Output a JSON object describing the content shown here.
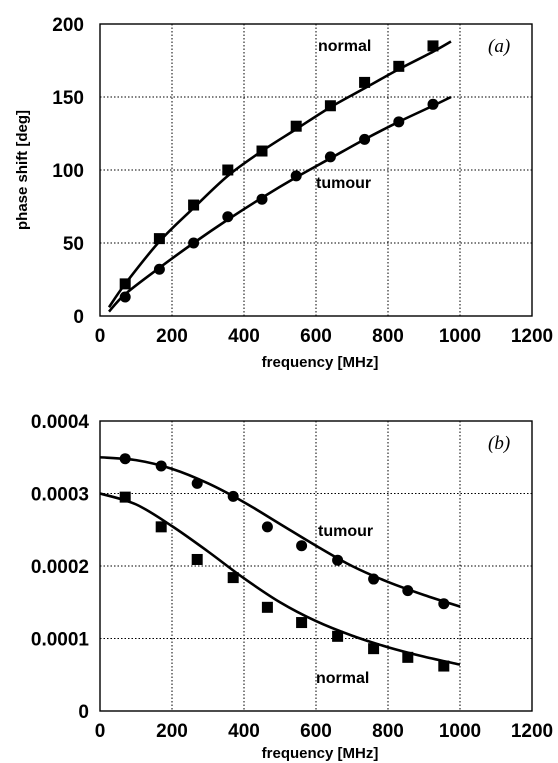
{
  "chart_data": [
    {
      "type": "scatter",
      "panel_label": "(a)",
      "xlabel": "frequency  [MHz]",
      "ylabel": "phase shift [deg]",
      "xlim": [
        0,
        1200
      ],
      "ylim": [
        0,
        200
      ],
      "x_ticks": [
        "0",
        "200",
        "400",
        "600",
        "800",
        "1000",
        "1200"
      ],
      "y_ticks": [
        "0",
        "50",
        "100",
        "150",
        "200"
      ],
      "grid": true,
      "series": [
        {
          "name": "normal",
          "marker": "square",
          "x": [
            70,
            165,
            260,
            355,
            450,
            545,
            640,
            735,
            830,
            925
          ],
          "y": [
            22,
            53,
            76,
            100,
            113,
            130,
            144,
            160,
            171,
            185
          ],
          "fit": [
            [
              25,
              6
            ],
            [
              70,
              22
            ],
            [
              165,
              51
            ],
            [
              260,
              74
            ],
            [
              355,
              96
            ],
            [
              450,
              113
            ],
            [
              545,
              128
            ],
            [
              640,
              143
            ],
            [
              735,
              156
            ],
            [
              830,
              169
            ],
            [
              925,
              181
            ],
            [
              975,
              188
            ]
          ]
        },
        {
          "name": "tumour",
          "marker": "circle",
          "x": [
            70,
            165,
            260,
            355,
            450,
            545,
            640,
            735,
            830,
            925
          ],
          "y": [
            13,
            32,
            50,
            68,
            80,
            96,
            109,
            121,
            133,
            145
          ],
          "fit": [
            [
              25,
              3
            ],
            [
              70,
              15
            ],
            [
              165,
              33
            ],
            [
              260,
              50
            ],
            [
              355,
              66
            ],
            [
              450,
              81
            ],
            [
              545,
              95
            ],
            [
              640,
              108
            ],
            [
              735,
              121
            ],
            [
              830,
              133
            ],
            [
              925,
              144
            ],
            [
              975,
              150
            ]
          ]
        }
      ]
    },
    {
      "type": "scatter",
      "panel_label": "(b)",
      "xlabel": "frequency  [MHz]",
      "ylabel": "",
      "xlim": [
        0,
        1200
      ],
      "ylim": [
        0,
        0.0004
      ],
      "x_ticks": [
        "0",
        "200",
        "400",
        "600",
        "800",
        "1000",
        "1200"
      ],
      "y_ticks": [
        "0",
        "0.0001",
        "0.0002",
        "0.0003",
        "0.0004"
      ],
      "grid": true,
      "series": [
        {
          "name": "tumour",
          "marker": "circle",
          "x": [
            70,
            170,
            270,
            370,
            465,
            560,
            660,
            760,
            855,
            955
          ],
          "y": [
            0.000348,
            0.000338,
            0.000314,
            0.000296,
            0.000254,
            0.000228,
            0.000208,
            0.000182,
            0.000166,
            0.000148
          ],
          "fit": [
            [
              0,
              0.00035
            ],
            [
              100,
              0.000346
            ],
            [
              200,
              0.000334
            ],
            [
              300,
              0.000314
            ],
            [
              400,
              0.000288
            ],
            [
              500,
              0.000258
            ],
            [
              600,
              0.000228
            ],
            [
              700,
              0.0002
            ],
            [
              800,
              0.000178
            ],
            [
              900,
              0.00016
            ],
            [
              1000,
              0.000144
            ]
          ]
        },
        {
          "name": "normal",
          "marker": "square",
          "x": [
            70,
            170,
            270,
            370,
            465,
            560,
            660,
            760,
            855,
            955
          ],
          "y": [
            0.000295,
            0.000254,
            0.000209,
            0.000184,
            0.000143,
            0.000122,
            0.000103,
            8.6e-05,
            7.4e-05,
            6.2e-05
          ],
          "fit": [
            [
              0,
              0.0003
            ],
            [
              100,
              0.000285
            ],
            [
              200,
              0.000255
            ],
            [
              300,
              0.00022
            ],
            [
              400,
              0.000183
            ],
            [
              500,
              0.00015
            ],
            [
              600,
              0.000124
            ],
            [
              700,
              0.000104
            ],
            [
              800,
              8.8e-05
            ],
            [
              900,
              7.5e-05
            ],
            [
              1000,
              6.4e-05
            ]
          ]
        }
      ]
    }
  ]
}
